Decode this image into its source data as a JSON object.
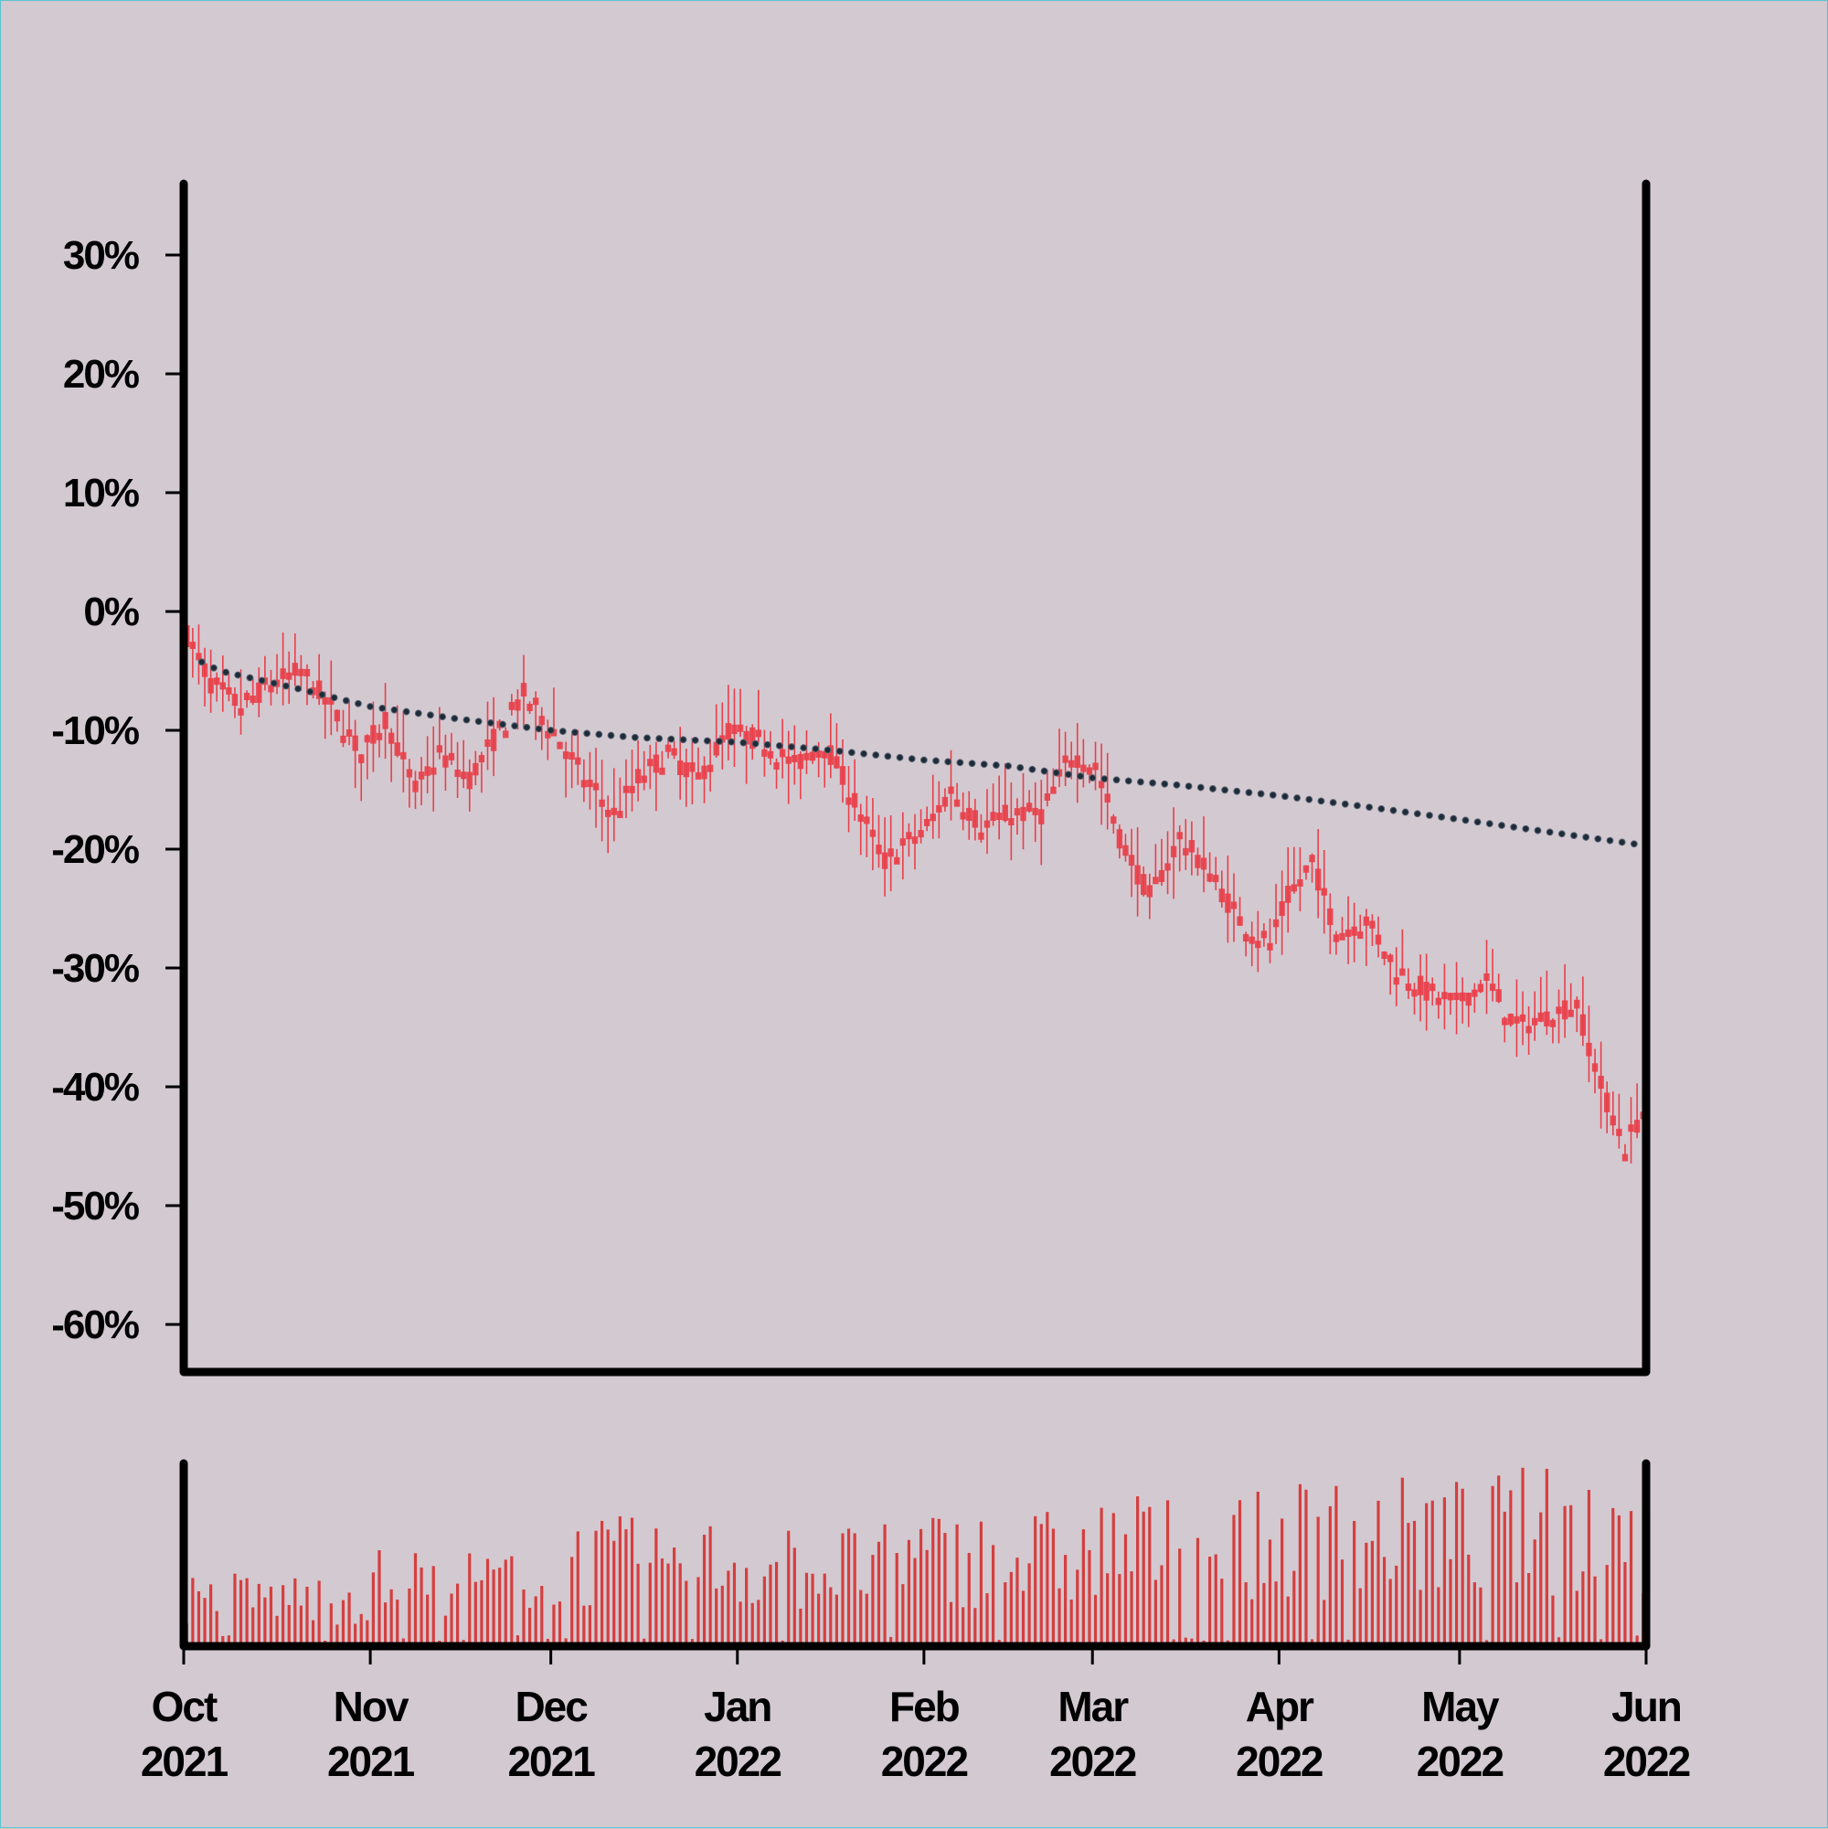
{
  "chart_data": {
    "type": "candlestick",
    "subtype": "percent-change with volume subplot",
    "title": "",
    "xlabel": "",
    "ylabel": "",
    "x_range": [
      "2021-10-01",
      "2022-06-01"
    ],
    "ylim": [
      -0.64,
      0.36
    ],
    "y_ticks": [
      0.3,
      0.2,
      0.1,
      0.0,
      -0.1,
      -0.2,
      -0.3,
      -0.4,
      -0.5,
      -0.6
    ],
    "y_tick_labels": [
      "30%",
      "20%",
      "10%",
      "0%",
      "-10%",
      "-20%",
      "-30%",
      "-40%",
      "-50%",
      "-60%"
    ],
    "x_ticks": [
      {
        "date": "2021-10-01",
        "month": "Oct",
        "year": "2021"
      },
      {
        "date": "2021-11-01",
        "month": "Nov",
        "year": "2021"
      },
      {
        "date": "2021-12-01",
        "month": "Dec",
        "year": "2021"
      },
      {
        "date": "2022-01-01",
        "month": "Jan",
        "year": "2022"
      },
      {
        "date": "2022-02-01",
        "month": "Feb",
        "year": "2022"
      },
      {
        "date": "2022-03-01",
        "month": "Mar",
        "year": "2022"
      },
      {
        "date": "2022-04-01",
        "month": "Apr",
        "year": "2022"
      },
      {
        "date": "2022-05-01",
        "month": "May",
        "year": "2022"
      },
      {
        "date": "2022-06-01",
        "month": "Jun",
        "year": "2022"
      }
    ],
    "grid": false,
    "legend": "none",
    "price_series": {
      "style": "candles",
      "color": "#e8404a",
      "points": [
        [
          "2021-10-01",
          -0.02
        ],
        [
          "2021-10-05",
          -0.06
        ],
        [
          "2021-10-10",
          -0.08
        ],
        [
          "2021-10-15",
          -0.06
        ],
        [
          "2021-10-20",
          -0.05
        ],
        [
          "2021-10-25",
          -0.08
        ],
        [
          "2021-10-30",
          -0.12
        ],
        [
          "2021-11-03",
          -0.09
        ],
        [
          "2021-11-08",
          -0.15
        ],
        [
          "2021-11-12",
          -0.12
        ],
        [
          "2021-11-17",
          -0.14
        ],
        [
          "2021-11-22",
          -0.1
        ],
        [
          "2021-11-26",
          -0.07
        ],
        [
          "2021-12-01",
          -0.1
        ],
        [
          "2021-12-06",
          -0.14
        ],
        [
          "2021-12-11",
          -0.17
        ],
        [
          "2021-12-15",
          -0.14
        ],
        [
          "2021-12-20",
          -0.12
        ],
        [
          "2021-12-25",
          -0.14
        ],
        [
          "2021-12-30",
          -0.1
        ],
        [
          "2022-01-05",
          -0.11
        ],
        [
          "2022-01-10",
          -0.13
        ],
        [
          "2022-01-15",
          -0.11
        ],
        [
          "2022-01-20",
          -0.16
        ],
        [
          "2022-01-25",
          -0.21
        ],
        [
          "2022-02-01",
          -0.18
        ],
        [
          "2022-02-05",
          -0.15
        ],
        [
          "2022-02-10",
          -0.18
        ],
        [
          "2022-02-15",
          -0.17
        ],
        [
          "2022-02-20",
          -0.17
        ],
        [
          "2022-02-25",
          -0.12
        ],
        [
          "2022-03-01",
          -0.13
        ],
        [
          "2022-03-05",
          -0.19
        ],
        [
          "2022-03-10",
          -0.24
        ],
        [
          "2022-03-15",
          -0.19
        ],
        [
          "2022-03-20",
          -0.22
        ],
        [
          "2022-03-25",
          -0.26
        ],
        [
          "2022-03-30",
          -0.28
        ],
        [
          "2022-04-02",
          -0.24
        ],
        [
          "2022-04-06",
          -0.21
        ],
        [
          "2022-04-10",
          -0.27
        ],
        [
          "2022-04-15",
          -0.26
        ],
        [
          "2022-04-20",
          -0.3
        ],
        [
          "2022-04-25",
          -0.32
        ],
        [
          "2022-04-30",
          -0.33
        ],
        [
          "2022-05-05",
          -0.31
        ],
        [
          "2022-05-10",
          -0.35
        ],
        [
          "2022-05-15",
          -0.34
        ],
        [
          "2022-05-20",
          -0.33
        ],
        [
          "2022-05-24",
          -0.4
        ],
        [
          "2022-05-28",
          -0.45
        ],
        [
          "2022-05-31",
          -0.42
        ]
      ]
    },
    "trend_series": {
      "style": "dotted",
      "color": "#1e2c38",
      "points": [
        [
          "2021-10-01",
          -0.02
        ],
        [
          "2021-10-03",
          -0.04
        ],
        [
          "2021-10-07",
          -0.05
        ],
        [
          "2021-10-20",
          -0.065
        ],
        [
          "2021-11-01",
          -0.08
        ],
        [
          "2021-11-15",
          -0.09
        ],
        [
          "2021-12-01",
          -0.1
        ],
        [
          "2021-12-15",
          -0.106
        ],
        [
          "2022-01-01",
          -0.11
        ],
        [
          "2022-01-15",
          -0.116
        ],
        [
          "2022-02-01",
          -0.125
        ],
        [
          "2022-02-15",
          -0.13
        ],
        [
          "2022-03-01",
          -0.14
        ],
        [
          "2022-03-15",
          -0.146
        ],
        [
          "2022-04-01",
          -0.155
        ],
        [
          "2022-04-15",
          -0.164
        ],
        [
          "2022-05-01",
          -0.175
        ],
        [
          "2022-05-15",
          -0.185
        ],
        [
          "2022-06-01",
          -0.197
        ]
      ]
    },
    "volume_series": {
      "style": "bars",
      "color": "#d43f3f",
      "unit": "relative",
      "ylim": [
        0,
        1
      ],
      "monthly_levels": [
        0.32,
        0.42,
        0.55,
        0.52,
        0.58,
        0.65,
        0.72,
        0.76
      ]
    }
  }
}
